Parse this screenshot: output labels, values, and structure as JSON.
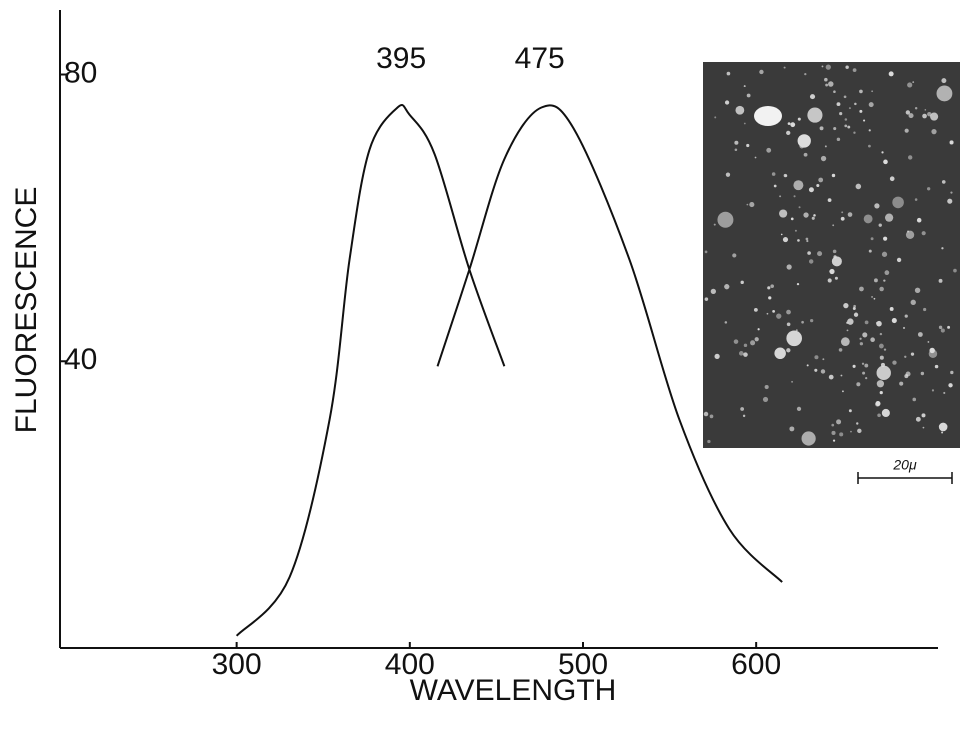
{
  "chart_data": {
    "type": "line",
    "xlabel": "WAVELENGTH",
    "ylabel": "FLUORESCENCE",
    "xlim": [
      198,
      705
    ],
    "ylim": [
      0,
      89
    ],
    "xticks": [
      300,
      400,
      500,
      600
    ],
    "yticks": [
      40,
      80
    ],
    "series": [
      {
        "color": "#111111",
        "x": [
          300,
          330.6,
          353.7,
          365.2,
          376.7,
          392.9,
          399.8,
          414.3,
          434.4,
          454.6
        ],
        "values": [
          1.7,
          9.9,
          31.9,
          54.2,
          69.5,
          75.4,
          74.4,
          68.9,
          52.8,
          39.3
        ]
      },
      {
        "color": "#111111",
        "x": [
          416,
          434.4,
          454.6,
          476,
          495,
          526.8,
          555.6,
          584.5,
          615
        ],
        "values": [
          39.3,
          52.8,
          68.2,
          75.4,
          72.3,
          54.2,
          31.9,
          16.6,
          9.2
        ]
      }
    ],
    "annotations": [
      {
        "label": "395",
        "x": 395,
        "y": 82
      },
      {
        "label": "475",
        "x": 475,
        "y": 82
      }
    ]
  },
  "inset": {
    "scale_label": "20μ"
  }
}
